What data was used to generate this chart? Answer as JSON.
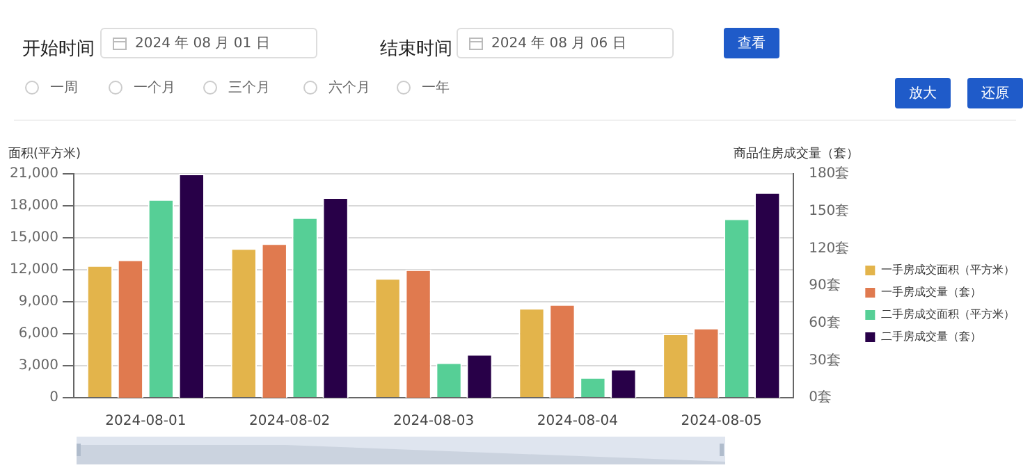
{
  "chart_data": {
    "type": "bar",
    "categories": [
      "2024-08-01",
      "2024-08-02",
      "2024-08-03",
      "2024-08-04",
      "2024-08-05"
    ],
    "ylabel": "面积(平方米)",
    "y2label": "商品住房成交量（套）",
    "series": [
      {
        "name": "一手房成交面积（平方米）",
        "color": "#e3b44b",
        "values": [
          12400,
          14000,
          11200,
          8400,
          6000
        ]
      },
      {
        "name": "一手房成交量（套）",
        "color": "#e07a4f",
        "axis": "y2",
        "values": [
          111,
          124,
          103,
          75,
          56
        ]
      },
      {
        "name": "二手房成交面积（平方米）",
        "color": "#56cf96",
        "values": [
          18600,
          16900,
          3300,
          1900,
          16800
        ]
      },
      {
        "name": "二手房成交量（套）",
        "color": "#280048",
        "axis": "y2",
        "values": [
          180,
          161,
          35,
          23,
          165
        ]
      }
    ],
    "ylim": [
      0,
      21000
    ],
    "yticks": [
      0,
      {
        "value": 3000,
        "label": "3,000"
      },
      {
        "value": 6000,
        "label": "6,000"
      },
      {
        "value": 9000,
        "label": "9,000"
      },
      {
        "value": 12000,
        "label": "12,000"
      },
      {
        "value": 15000,
        "label": "15,000"
      },
      {
        "value": 18000,
        "label": "18,000"
      },
      {
        "value": 21000,
        "label": "21,000"
      }
    ],
    "y2lim": [
      0,
      180
    ],
    "y2ticks": [
      {
        "value": 0,
        "label": "0套"
      },
      {
        "value": 30,
        "label": "30套"
      },
      {
        "value": 60,
        "label": "60套"
      },
      {
        "value": 90,
        "label": "90套"
      },
      {
        "value": 120,
        "label": "120套"
      },
      {
        "value": 150,
        "label": "150套"
      },
      {
        "value": 180,
        "label": "180套"
      }
    ],
    "grid": "y",
    "legend": "right",
    "annotations": [
      "开始时间",
      "2024 年 08 月 01 日",
      "结束时间",
      "2024 年 08 月 06 日",
      "查看",
      "一周",
      "一个月",
      "三个月",
      "六个月",
      "一年",
      "放大",
      "还原"
    ]
  }
}
